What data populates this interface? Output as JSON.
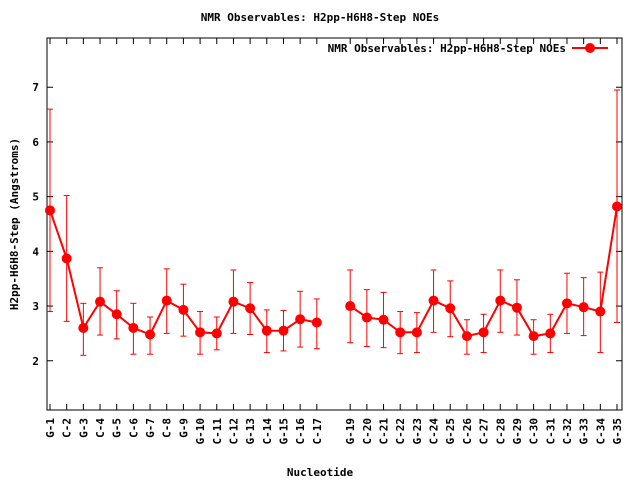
{
  "chart_data": {
    "type": "line",
    "title": "NMR Observables: H2pp-H6H8-Step NOEs",
    "xlabel": "Nucleotide",
    "ylabel": "H2pp-H6H8-Step (Angstroms)",
    "ylim": [
      1.1,
      7.9
    ],
    "yticks": [
      2,
      3,
      4,
      5,
      6,
      7
    ],
    "legend": "top-right",
    "color": "#ff0000",
    "categories": [
      "G-1",
      "C-2",
      "G-3",
      "C-4",
      "G-5",
      "C-6",
      "G-7",
      "C-8",
      "G-9",
      "G-10",
      "C-11",
      "C-12",
      "G-13",
      "C-14",
      "G-15",
      "C-16",
      "C-17",
      "G-19",
      "C-20",
      "C-21",
      "C-22",
      "G-23",
      "C-24",
      "G-25",
      "C-26",
      "C-27",
      "C-28",
      "G-29",
      "C-30",
      "C-31",
      "C-32",
      "G-33",
      "C-34",
      "G-35"
    ],
    "series": [
      {
        "name": "NMR Observables: H2pp-H6H8-Step NOEs",
        "segments": [
          {
            "points": [
              {
                "x": "G-1",
                "y": 4.75,
                "lo": 2.9,
                "hi": 6.6
              },
              {
                "x": "C-2",
                "y": 3.87,
                "lo": 2.72,
                "hi": 5.02
              },
              {
                "x": "G-3",
                "y": 2.6,
                "lo": 2.1,
                "hi": 3.05
              },
              {
                "x": "C-4",
                "y": 3.08,
                "lo": 2.47,
                "hi": 3.7
              },
              {
                "x": "G-5",
                "y": 2.85,
                "lo": 2.4,
                "hi": 3.28
              },
              {
                "x": "C-6",
                "y": 2.6,
                "lo": 2.12,
                "hi": 3.05
              },
              {
                "x": "G-7",
                "y": 2.48,
                "lo": 2.12,
                "hi": 2.8
              },
              {
                "x": "C-8",
                "y": 3.1,
                "lo": 2.5,
                "hi": 3.68
              },
              {
                "x": "G-9",
                "y": 2.93,
                "lo": 2.45,
                "hi": 3.4
              },
              {
                "x": "G-10",
                "y": 2.52,
                "lo": 2.12,
                "hi": 2.9
              },
              {
                "x": "C-11",
                "y": 2.5,
                "lo": 2.2,
                "hi": 2.8
              },
              {
                "x": "C-12",
                "y": 3.08,
                "lo": 2.5,
                "hi": 3.66
              },
              {
                "x": "G-13",
                "y": 2.96,
                "lo": 2.48,
                "hi": 3.43
              },
              {
                "x": "C-14",
                "y": 2.55,
                "lo": 2.15,
                "hi": 2.93
              },
              {
                "x": "G-15",
                "y": 2.55,
                "lo": 2.18,
                "hi": 2.92
              },
              {
                "x": "C-16",
                "y": 2.76,
                "lo": 2.25,
                "hi": 3.27
              },
              {
                "x": "C-17",
                "y": 2.7,
                "lo": 2.22,
                "hi": 3.13
              }
            ]
          },
          {
            "points": [
              {
                "x": "G-19",
                "y": 3.0,
                "lo": 2.33,
                "hi": 3.66
              },
              {
                "x": "C-20",
                "y": 2.79,
                "lo": 2.26,
                "hi": 3.3
              },
              {
                "x": "C-21",
                "y": 2.75,
                "lo": 2.24,
                "hi": 3.25
              },
              {
                "x": "C-22",
                "y": 2.52,
                "lo": 2.13,
                "hi": 2.9
              },
              {
                "x": "G-23",
                "y": 2.52,
                "lo": 2.15,
                "hi": 2.88
              },
              {
                "x": "C-24",
                "y": 3.1,
                "lo": 2.52,
                "hi": 3.66
              },
              {
                "x": "G-25",
                "y": 2.96,
                "lo": 2.44,
                "hi": 3.46
              },
              {
                "x": "C-26",
                "y": 2.45,
                "lo": 2.12,
                "hi": 2.75
              },
              {
                "x": "C-27",
                "y": 2.52,
                "lo": 2.15,
                "hi": 2.85
              },
              {
                "x": "C-28",
                "y": 3.1,
                "lo": 2.52,
                "hi": 3.66
              },
              {
                "x": "G-29",
                "y": 2.97,
                "lo": 2.47,
                "hi": 3.48
              },
              {
                "x": "C-30",
                "y": 2.45,
                "lo": 2.12,
                "hi": 2.75
              },
              {
                "x": "C-31",
                "y": 2.5,
                "lo": 2.15,
                "hi": 2.85
              },
              {
                "x": "C-32",
                "y": 3.05,
                "lo": 2.5,
                "hi": 3.6
              },
              {
                "x": "G-33",
                "y": 2.98,
                "lo": 2.46,
                "hi": 3.52
              },
              {
                "x": "C-34",
                "y": 2.9,
                "lo": 2.15,
                "hi": 3.62
              },
              {
                "x": "G-35",
                "y": 4.82,
                "lo": 2.7,
                "hi": 6.95
              }
            ]
          }
        ]
      }
    ]
  }
}
